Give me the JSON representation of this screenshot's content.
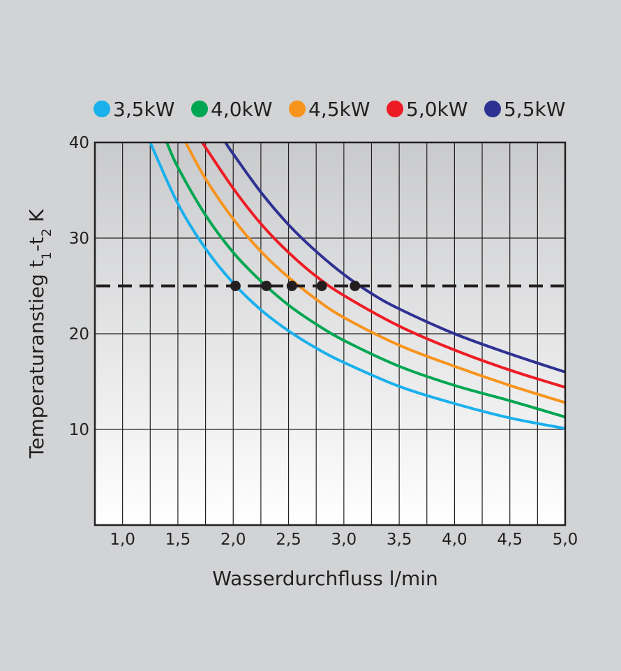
{
  "chart_data": {
    "type": "line",
    "title": "",
    "xlabel": "Wasserdurchfluss  l/min",
    "ylabel": {
      "main": "Temperaturanstieg  t",
      "sub1": "1",
      "mid": "-t",
      "sub2": "2",
      "tail": "  K"
    },
    "xlim": [
      0.75,
      5.0
    ],
    "ylim": [
      0,
      40
    ],
    "x_ticks": [
      1.0,
      1.5,
      2.0,
      2.5,
      3.0,
      3.5,
      4.0,
      4.5,
      5.0
    ],
    "x_tick_labels": [
      "1,0",
      "1,5",
      "2,0",
      "2,5",
      "3,0",
      "3,5",
      "4,0",
      "4,5",
      "5,0"
    ],
    "y_ticks": [
      10,
      20,
      30,
      40
    ],
    "y_tick_labels": [
      "10",
      "20",
      "30",
      "40"
    ],
    "grid": true,
    "legend_position": "top",
    "reference_line": {
      "y": 25,
      "style": "dashed",
      "color": "#231f20"
    },
    "series": [
      {
        "name": "3,5kW",
        "color": "#1ab0ec",
        "x": [
          1.25,
          1.5,
          1.75,
          2.0,
          2.25,
          2.5,
          2.75,
          3.0,
          3.5,
          4.0,
          4.5,
          5.0
        ],
        "y": [
          40.0,
          33.6,
          28.9,
          25.3,
          22.5,
          20.3,
          18.5,
          17.0,
          14.5,
          12.7,
          11.2,
          10.1
        ],
        "marker": {
          "x": 2.02,
          "y": 25
        }
      },
      {
        "name": "4,0kW",
        "color": "#00a651",
        "x": [
          1.4,
          1.5,
          1.75,
          2.0,
          2.25,
          2.5,
          2.75,
          3.0,
          3.5,
          4.0,
          4.5,
          5.0
        ],
        "y": [
          40.0,
          37.4,
          32.4,
          28.5,
          25.5,
          23.0,
          21.0,
          19.3,
          16.6,
          14.6,
          13.0,
          11.3
        ],
        "marker": {
          "x": 2.3,
          "y": 25
        }
      },
      {
        "name": "4,5kW",
        "color": "#f7941d",
        "x": [
          1.57,
          1.75,
          2.0,
          2.25,
          2.5,
          2.75,
          3.0,
          3.5,
          4.0,
          4.5,
          5.0
        ],
        "y": [
          40.0,
          36.2,
          32.0,
          28.6,
          25.9,
          23.6,
          21.7,
          18.8,
          16.6,
          14.6,
          12.8
        ],
        "marker": {
          "x": 2.53,
          "y": 25
        }
      },
      {
        "name": "5,0kW",
        "color": "#ed1c24",
        "x": [
          1.72,
          2.0,
          2.25,
          2.5,
          2.75,
          3.0,
          3.5,
          4.0,
          4.5,
          5.0
        ],
        "y": [
          40.0,
          35.2,
          31.5,
          28.5,
          26.0,
          24.0,
          20.8,
          18.3,
          16.2,
          14.4
        ],
        "marker": {
          "x": 2.8,
          "y": 25
        }
      },
      {
        "name": "5,5kW",
        "color": "#2e3192",
        "x": [
          1.93,
          2.0,
          2.25,
          2.5,
          2.75,
          3.0,
          3.25,
          3.5,
          4.0,
          4.5,
          5.0
        ],
        "y": [
          40.0,
          38.8,
          34.8,
          31.4,
          28.6,
          26.2,
          24.2,
          22.6,
          20.0,
          17.9,
          16.0
        ],
        "marker": {
          "x": 3.1,
          "y": 25
        }
      }
    ]
  }
}
